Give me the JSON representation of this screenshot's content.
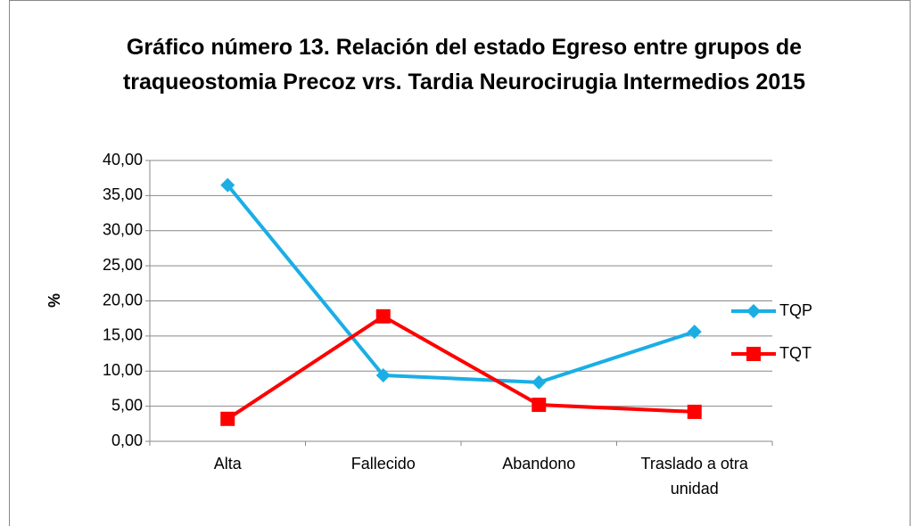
{
  "chart_data": {
    "type": "line",
    "title": "Gráfico número 13. Relación del estado Egreso entre grupos de traqueostomia Precoz vrs. Tardia Neurocirugia Intermedios 2015",
    "y_label": "%",
    "categories": [
      "Alta",
      "Fallecido",
      "Abandono",
      "Traslado a otra unidad"
    ],
    "series": [
      {
        "name": "TQP",
        "color": "#1aaee5",
        "marker": "diamond",
        "values": [
          36.5,
          9.4,
          8.4,
          15.6
        ]
      },
      {
        "name": "TQT",
        "color": "#ff0000",
        "marker": "square",
        "values": [
          3.2,
          17.8,
          5.2,
          4.2
        ]
      }
    ],
    "ylim": [
      0,
      40
    ],
    "yticks": [
      {
        "value": 0,
        "label": "0,00"
      },
      {
        "value": 5,
        "label": "5,00"
      },
      {
        "value": 10,
        "label": "10,00"
      },
      {
        "value": 15,
        "label": "15,00"
      },
      {
        "value": 20,
        "label": "20,00"
      },
      {
        "value": 25,
        "label": "25,00"
      },
      {
        "value": 30,
        "label": "30,00"
      },
      {
        "value": 35,
        "label": "35,00"
      },
      {
        "value": 40,
        "label": "40,00"
      }
    ],
    "grid": true,
    "legend": "right"
  }
}
